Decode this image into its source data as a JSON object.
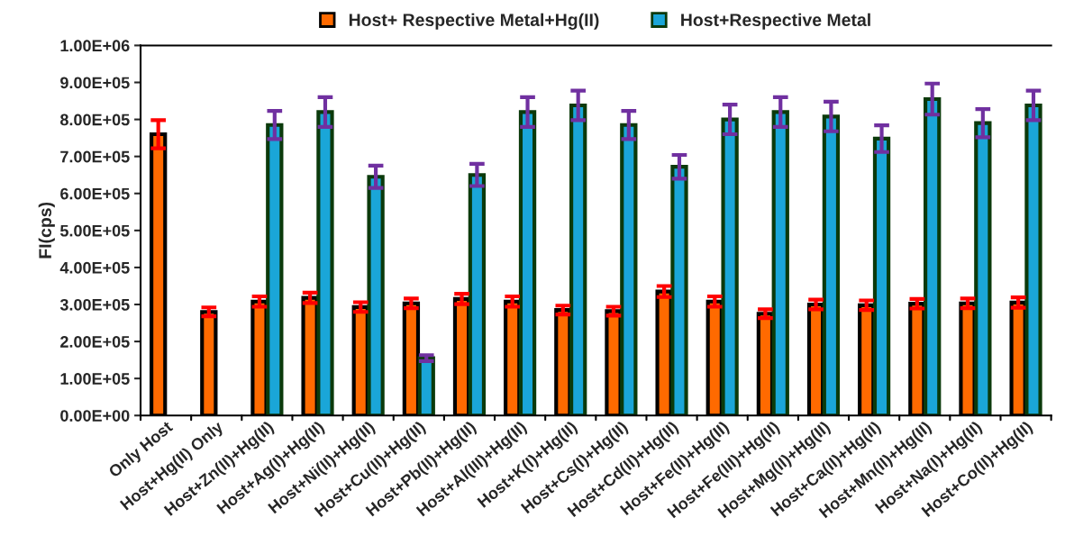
{
  "chart_data": {
    "type": "bar",
    "ylabel": "FI(cps)",
    "categories": [
      "Only Host",
      "Host+Hg(II) Only",
      "Host+Zn(II)+Hg(II)",
      "Host+Ag(I)+Hg(II)",
      "Host+Ni(II)+Hg(II)",
      "Host+Cu(II)+Hg(II)",
      "Host+Pb(II)+Hg(II)",
      "Host+Al(III)+Hg(II)",
      "Host+K(I)+Hg(II)",
      "Host+Cs(I)+Hg(II)",
      "Host+Cd(II)+Hg(II)",
      "Host+Fe(II)+Hg(II)",
      "Host+Fe(III)+Hg(II)",
      "Host+Mg(II)+Hg(II)",
      "Host+Ca(II)+Hg(II)",
      "Host+Mn(II)+Hg(II)",
      "Host+Na(I)+Hg(II)",
      "Host+Co(II)+Hg(II)"
    ],
    "series": [
      {
        "name": "Host+ Respective Metal+Hg(II)",
        "color": "#ff6a00",
        "values": [
          760000,
          280000,
          308000,
          318000,
          293000,
          303000,
          315000,
          308000,
          285000,
          282000,
          335000,
          308000,
          275000,
          300000,
          298000,
          302000,
          303000,
          305000
        ],
        "errors": [
          38000,
          12000,
          14000,
          14000,
          13000,
          13000,
          14000,
          14000,
          12000,
          12000,
          15000,
          14000,
          12000,
          13000,
          13000,
          13000,
          13000,
          14000
        ]
      },
      {
        "name": "Host+Respective Metal",
        "color": "#1aa6d8",
        "values": [
          null,
          null,
          785000,
          820000,
          645000,
          155000,
          650000,
          820000,
          838000,
          785000,
          672000,
          800000,
          820000,
          808000,
          748000,
          855000,
          790000,
          838000
        ],
        "errors": [
          null,
          null,
          38000,
          40000,
          30000,
          8000,
          30000,
          40000,
          40000,
          38000,
          32000,
          40000,
          40000,
          40000,
          36000,
          42000,
          38000,
          40000
        ]
      }
    ],
    "ylim": [
      0,
      1000000
    ],
    "yticks": [
      {
        "value": 0,
        "label": "0.00E+00"
      },
      {
        "value": 100000,
        "label": "1.00E+05"
      },
      {
        "value": 200000,
        "label": "2.00E+05"
      },
      {
        "value": 300000,
        "label": "3.00E+05"
      },
      {
        "value": 400000,
        "label": "4.00E+05"
      },
      {
        "value": 500000,
        "label": "5.00E+05"
      },
      {
        "value": 600000,
        "label": "6.00E+05"
      },
      {
        "value": 700000,
        "label": "7.00E+05"
      },
      {
        "value": 800000,
        "label": "8.00E+05"
      },
      {
        "value": 900000,
        "label": "9.00E+05"
      },
      {
        "value": 1000000,
        "label": "1.00E+06"
      }
    ],
    "grid": false,
    "legend": "top"
  }
}
